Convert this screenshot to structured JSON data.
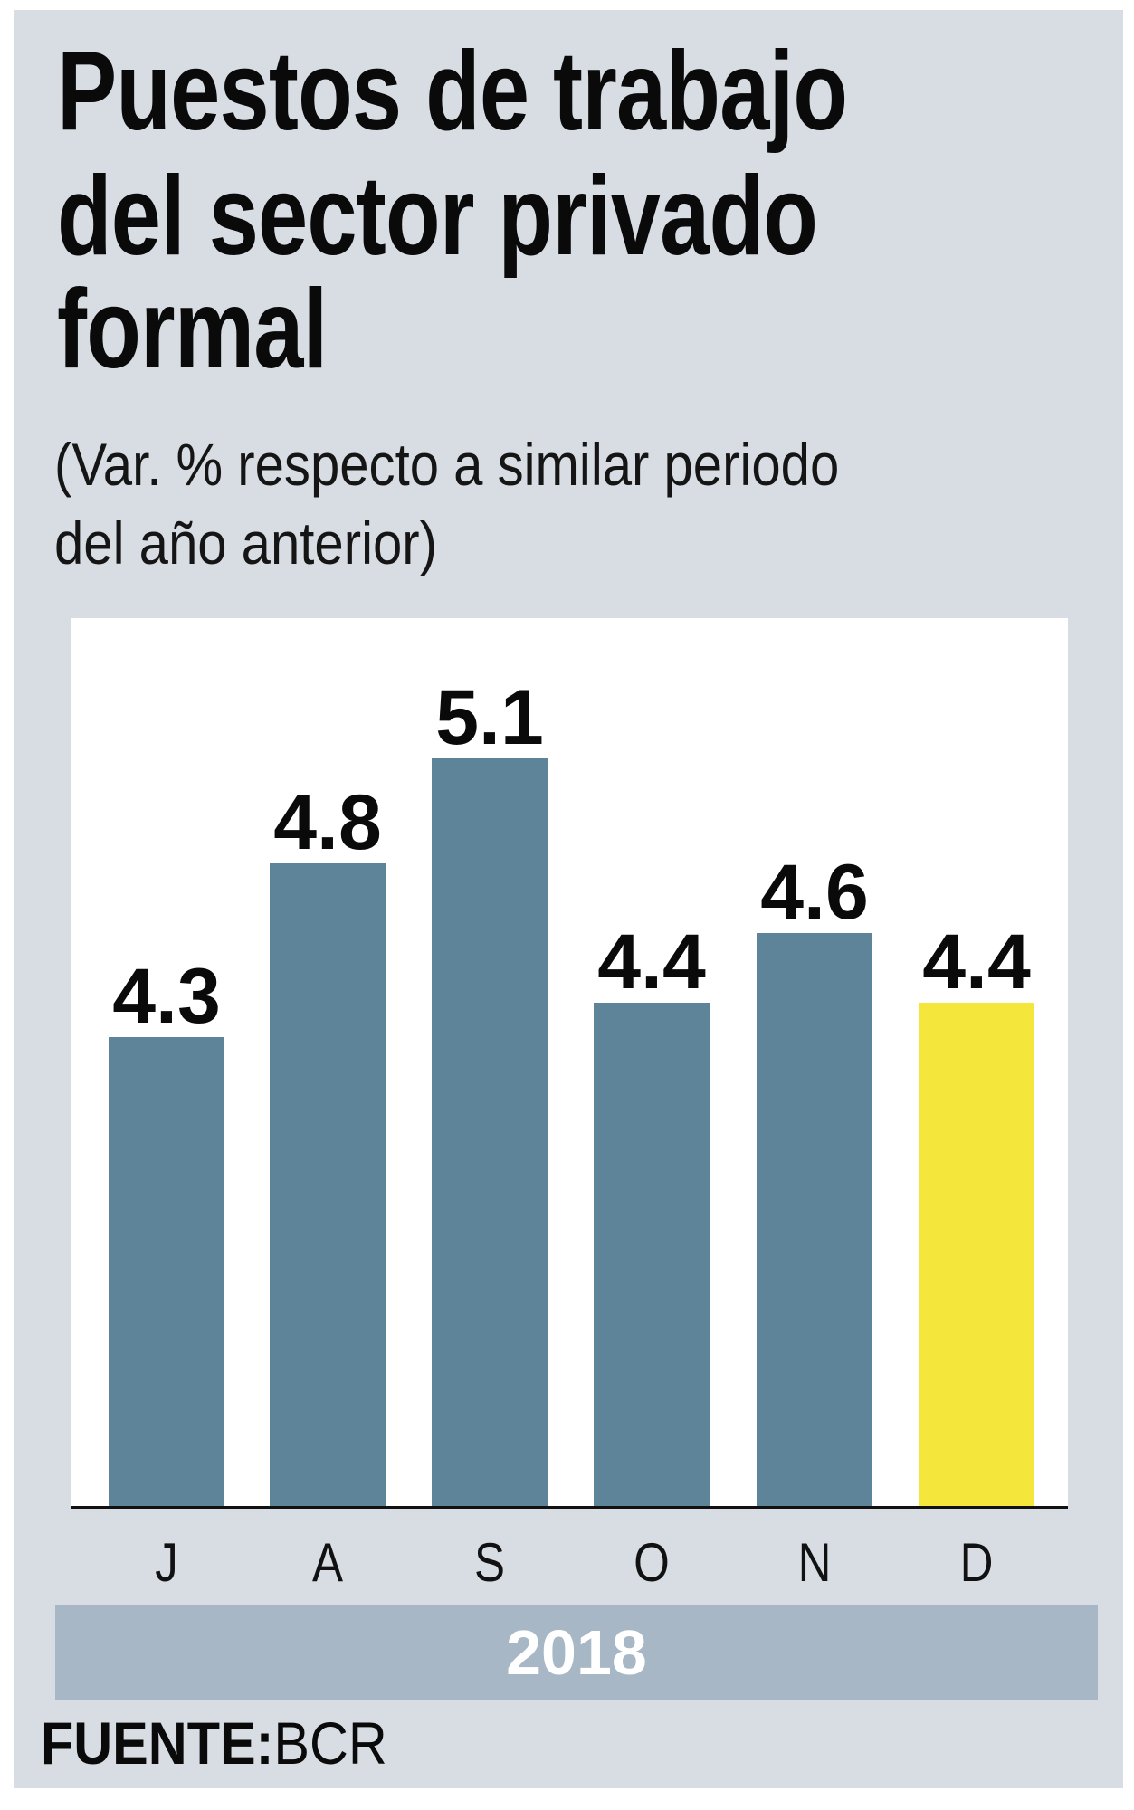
{
  "title": {
    "lines": [
      "Puestos de trabajo",
      "del sector privado",
      "formal"
    ]
  },
  "subtitle": {
    "lines": [
      "(Var. % respecto a similar periodo",
      "del año anterior)"
    ]
  },
  "source": {
    "label": "FUENTE:",
    "value": "BCR"
  },
  "colors": {
    "panel_background": "#d8dde4",
    "plot_background": "#ffffff",
    "bar": "#5e849a",
    "bar_highlight": "#f4e63a",
    "year_band": "#a8b7c5",
    "year_text": "#ffffff",
    "text": "#0a0a0a"
  },
  "chart_data": {
    "type": "bar",
    "title": "Puestos de trabajo del sector privado formal",
    "subtitle": "(Var. % respecto a similar periodo del año anterior)",
    "categories": [
      "J",
      "A",
      "S",
      "O",
      "N",
      "D"
    ],
    "values": [
      4.3,
      4.8,
      5.1,
      4.4,
      4.6,
      4.4
    ],
    "value_labels": [
      "4.3",
      "4.8",
      "5.1",
      "4.4",
      "4.6",
      "4.4"
    ],
    "highlight_index": 5,
    "group_label": "2018",
    "xlabel": "",
    "ylabel": "",
    "ylim": [
      2.95,
      5.5
    ],
    "grid": false,
    "legend": null,
    "source": "FUENTE: BCR"
  }
}
